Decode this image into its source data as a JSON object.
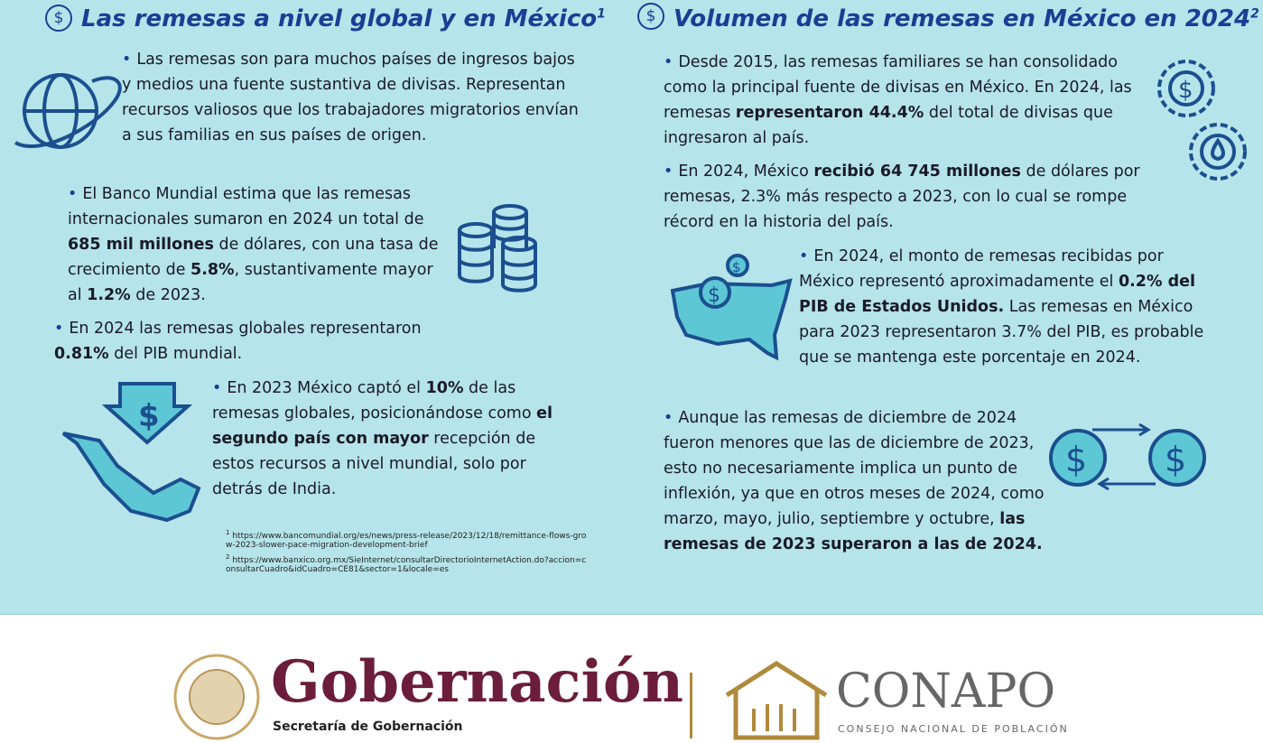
{
  "left": {
    "title": {
      "text": "Las remesas a nivel global y en México",
      "note": "1"
    },
    "bullets": [
      [
        {
          "text": "Las remesas son para muchos países de ingresos bajos y medios una fuente sustantiva de divisas. Representan recursos valiosos que los trabajadores migratorios envían a sus familias en sus países de origen.",
          "bold": false
        }
      ],
      [
        {
          "text": "El Banco Mundial estima que las remesas internacionales sumaron en 2024 un total de ",
          "bold": false
        },
        {
          "text": "685 mil millones",
          "bold": true
        },
        {
          "text": " de dólares, con una tasa de crecimiento de ",
          "bold": false
        },
        {
          "text": "5.8%",
          "bold": true
        },
        {
          "text": ", sustantivamente mayor al ",
          "bold": false
        },
        {
          "text": "1.2%",
          "bold": true
        },
        {
          "text": " de 2023.",
          "bold": false
        }
      ],
      [
        {
          "text": "En 2024 las remesas globales representaron ",
          "bold": false
        },
        {
          "text": "0.81%",
          "bold": true
        },
        {
          "text": " del PIB mundial.",
          "bold": false
        }
      ],
      [
        {
          "text": "En 2023 México captó el ",
          "bold": false
        },
        {
          "text": "10%",
          "bold": true
        },
        {
          "text": " de las remesas globales, posicionándose como ",
          "bold": false
        },
        {
          "text": "el segundo país con mayor",
          "bold": true
        },
        {
          "text": " recepción de estos recursos a nivel mundial, solo por detrás de India.",
          "bold": false
        }
      ]
    ],
    "footnotes": [
      {
        "number": "1",
        "text": "https://www.bancomundial.org/es/news/press-release/2023/12/18/remittance-flows-grow-2023-slower-pace-migration-development-brief"
      },
      {
        "number": "2",
        "text": "https://www.banxico.org.mx/SieInternet/consultarDirectorioInternetAction.do?accion=consultarCuadro&idCuadro=CE81&sector=1&locale=es"
      }
    ]
  },
  "right": {
    "title": {
      "text": "Volumen de las remesas en México en 2024",
      "note": "2"
    },
    "bullets": [
      [
        {
          "text": "Desde 2015, las remesas familiares se han consolidado como la principal fuente de divisas en México. En 2024, las remesas ",
          "bold": false
        },
        {
          "text": "representaron 44.4%",
          "bold": true
        },
        {
          "text": " del total de divisas que ingresaron al país.",
          "bold": false
        }
      ],
      [
        {
          "text": "En 2024, México ",
          "bold": false
        },
        {
          "text": "recibió 64 745 millones",
          "bold": true
        },
        {
          "text": " de dólares por remesas, 2.3% más respecto a 2023, con lo cual se rompe récord en la historia del país.",
          "bold": false
        }
      ],
      [
        {
          "text": "En 2024, el monto de remesas recibidas por México representó aproximadamente el ",
          "bold": false
        },
        {
          "text": "0.2% del PIB de Estados Unidos.",
          "bold": true
        },
        {
          "text": " Las remesas en México para 2023 representaron 3.7% del PIB, es probable que se mantenga este porcentaje en 2024.",
          "bold": false
        }
      ],
      [
        {
          "text": "Aunque las remesas de diciembre de 2024 fueron menores que las de diciembre de 2023, esto no necesariamente implica un punto de inflexión, ya que en otros meses de 2024, como marzo, mayo, julio, septiembre y octubre, ",
          "bold": false
        },
        {
          "text": "las remesas de 2023 superaron a las de 2024.",
          "bold": true
        }
      ]
    ]
  },
  "footer": {
    "gob_name": "Gobernación",
    "gob_sub": "Secretaría de Gobernación",
    "conapo_name": "CONAPO",
    "conapo_sub": "CONSEJO NACIONAL DE POBLACIÓN"
  }
}
